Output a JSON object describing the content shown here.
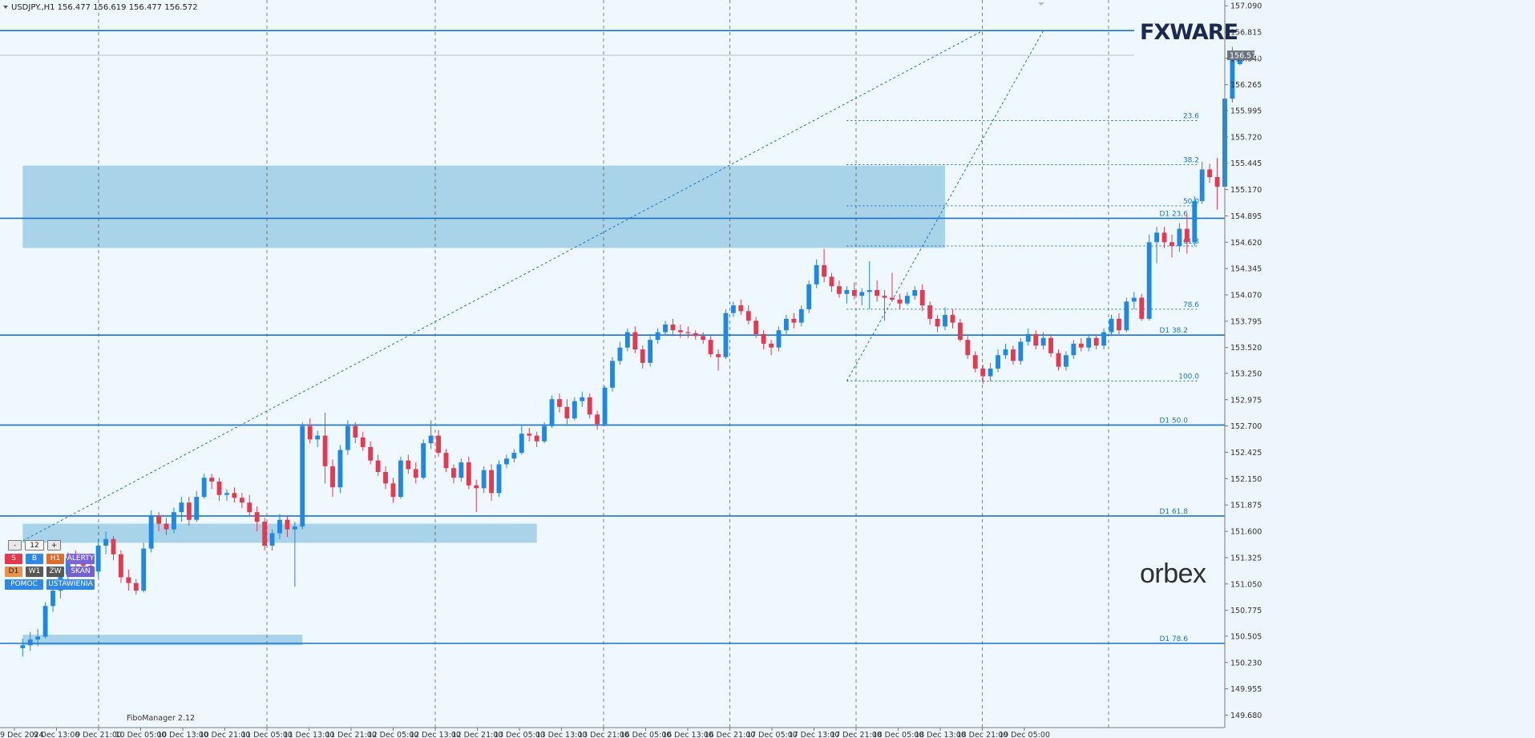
{
  "chart_data": {
    "type": "candlestick",
    "title": "USDJPY.,H1  156.477 156.619 156.477 156.572",
    "current_price": "156.572",
    "ylim": [
      149.55,
      157.15
    ],
    "y_ticks": [
      "157.090",
      "156.815",
      "156.540",
      "156.265",
      "155.995",
      "155.720",
      "155.445",
      "155.170",
      "154.895",
      "154.620",
      "154.345",
      "154.070",
      "153.795",
      "153.520",
      "153.250",
      "152.975",
      "152.700",
      "152.425",
      "152.150",
      "151.875",
      "151.600",
      "151.325",
      "151.050",
      "150.775",
      "150.505",
      "150.230",
      "149.955",
      "149.680"
    ],
    "x_ticks": [
      "9 Dec 2024",
      "9 Dec 13:00",
      "9 Dec 21:00",
      "10 Dec 05:00",
      "10 Dec 13:00",
      "10 Dec 21:00",
      "11 Dec 05:00",
      "11 Dec 13:00",
      "11 Dec 21:00",
      "12 Dec 05:00",
      "12 Dec 13:00",
      "12 Dec 21:00",
      "13 Dec 05:00",
      "13 Dec 13:00",
      "13 Dec 21:00",
      "16 Dec 05:00",
      "16 Dec 13:00",
      "16 Dec 21:00",
      "17 Dec 05:00",
      "17 Dec 13:00",
      "17 Dec 21:00",
      "18 Dec 05:00",
      "18 Dec 13:00",
      "18 Dec 21:00",
      "19 Dec 05:00"
    ],
    "grid_x_at_ticks": [
      "9 Dec 21:00",
      "11 Dec 05:00",
      "12 Dec 13:00",
      "13 Dec 21:00",
      "16 Dec 21:00",
      "17 Dec 21:00",
      "18 Dec 21:00"
    ],
    "horizontal_levels": [
      {
        "price": 156.83,
        "label": ""
      },
      {
        "price": 154.87,
        "label": "D1 23.6"
      },
      {
        "price": 153.65,
        "label": "D1 38.2"
      },
      {
        "price": 152.71,
        "label": "D1 50.0"
      },
      {
        "price": 151.76,
        "label": "D1 61.8"
      },
      {
        "price": 150.43,
        "label": "D1 78.6"
      }
    ],
    "fib_levels": [
      {
        "label": "23.6",
        "price": 155.89
      },
      {
        "label": "38.2",
        "price": 155.43
      },
      {
        "label": "50.0",
        "price": 155.0
      },
      {
        "label": "61.8",
        "price": 154.58
      },
      {
        "label": "78.6",
        "price": 153.92
      },
      {
        "label": "100.0",
        "price": 153.17
      }
    ],
    "zones": [
      {
        "name": "zone-1",
        "x_from": 0,
        "x_to": 122,
        "price_top": 155.42,
        "price_bottom": 154.56
      },
      {
        "name": "zone-2",
        "x_from": 0,
        "x_to": 68,
        "price_top": 151.68,
        "price_bottom": 151.48
      },
      {
        "name": "zone-3",
        "x_from": 0,
        "x_to": 37,
        "price_top": 150.52,
        "price_bottom": 150.41
      }
    ],
    "diagonals": [
      {
        "from_index": 0,
        "from_price": 151.5,
        "to_index": 127,
        "to_price": 156.83
      },
      {
        "from_index": 109,
        "from_price": 153.17,
        "to_index": 135,
        "to_price": 156.83
      }
    ],
    "x_start_index": -3,
    "x_end_index": 159,
    "candles": [
      [
        150.38,
        150.48,
        150.29,
        150.41
      ],
      [
        150.41,
        150.55,
        150.35,
        150.47
      ],
      [
        150.47,
        150.58,
        150.4,
        150.5
      ],
      [
        150.5,
        150.86,
        150.48,
        150.82
      ],
      [
        150.82,
        151.0,
        150.76,
        150.98
      ],
      [
        150.98,
        151.2,
        150.9,
        151.15
      ],
      [
        151.15,
        151.38,
        151.08,
        151.32
      ],
      [
        151.32,
        151.4,
        151.22,
        151.28
      ],
      [
        151.28,
        151.35,
        151.16,
        151.24
      ],
      [
        151.24,
        151.32,
        151.14,
        151.18
      ],
      [
        151.18,
        151.52,
        151.12,
        151.45
      ],
      [
        151.45,
        151.6,
        151.36,
        151.52
      ],
      [
        151.52,
        151.55,
        151.3,
        151.36
      ],
      [
        151.36,
        151.4,
        151.06,
        151.12
      ],
      [
        151.12,
        151.2,
        150.98,
        151.06
      ],
      [
        151.06,
        151.1,
        150.94,
        150.98
      ],
      [
        150.98,
        151.48,
        150.96,
        151.42
      ],
      [
        151.42,
        151.82,
        151.38,
        151.76
      ],
      [
        151.76,
        151.8,
        151.6,
        151.68
      ],
      [
        151.68,
        151.74,
        151.56,
        151.62
      ],
      [
        151.62,
        151.85,
        151.58,
        151.8
      ],
      [
        151.8,
        151.96,
        151.7,
        151.9
      ],
      [
        151.9,
        151.96,
        151.66,
        151.72
      ],
      [
        151.72,
        152.02,
        151.7,
        151.96
      ],
      [
        151.96,
        152.2,
        151.94,
        152.16
      ],
      [
        152.16,
        152.2,
        152.04,
        152.12
      ],
      [
        152.12,
        152.16,
        151.92,
        151.98
      ],
      [
        151.98,
        152.04,
        151.92,
        152.0
      ],
      [
        152.0,
        152.06,
        151.9,
        151.95
      ],
      [
        151.95,
        152.0,
        151.84,
        151.9
      ],
      [
        151.9,
        151.98,
        151.76,
        151.8
      ],
      [
        151.8,
        151.86,
        151.6,
        151.7
      ],
      [
        151.7,
        151.74,
        151.4,
        151.45
      ],
      [
        151.45,
        151.62,
        151.4,
        151.58
      ],
      [
        151.58,
        151.78,
        151.52,
        151.72
      ],
      [
        151.72,
        151.76,
        151.54,
        151.62
      ],
      [
        151.62,
        151.7,
        151.02,
        151.65
      ],
      [
        151.65,
        152.74,
        151.62,
        152.7
      ],
      [
        152.7,
        152.78,
        152.52,
        152.56
      ],
      [
        152.56,
        152.65,
        152.48,
        152.6
      ],
      [
        152.6,
        152.84,
        152.1,
        152.28
      ],
      [
        152.28,
        152.35,
        151.96,
        152.06
      ],
      [
        152.06,
        152.5,
        152.0,
        152.45
      ],
      [
        152.45,
        152.76,
        152.4,
        152.7
      ],
      [
        152.7,
        152.74,
        152.52,
        152.58
      ],
      [
        152.58,
        152.64,
        152.44,
        152.48
      ],
      [
        152.48,
        152.54,
        152.3,
        152.34
      ],
      [
        152.34,
        152.4,
        152.18,
        152.22
      ],
      [
        152.22,
        152.28,
        152.04,
        152.1
      ],
      [
        152.1,
        152.16,
        151.9,
        151.96
      ],
      [
        151.96,
        152.38,
        151.94,
        152.34
      ],
      [
        152.34,
        152.4,
        152.2,
        152.25
      ],
      [
        152.25,
        152.32,
        152.1,
        152.16
      ],
      [
        152.16,
        152.56,
        152.14,
        152.52
      ],
      [
        152.52,
        152.76,
        152.46,
        152.6
      ],
      [
        152.6,
        152.66,
        152.38,
        152.42
      ],
      [
        152.42,
        152.46,
        152.22,
        152.26
      ],
      [
        152.26,
        152.3,
        152.1,
        152.16
      ],
      [
        152.16,
        152.36,
        152.12,
        152.32
      ],
      [
        152.32,
        152.38,
        152.04,
        152.08
      ],
      [
        152.08,
        152.14,
        151.8,
        152.05
      ],
      [
        152.05,
        152.28,
        152.0,
        152.24
      ],
      [
        152.24,
        152.3,
        151.92,
        152.0
      ],
      [
        152.0,
        152.34,
        151.96,
        152.3
      ],
      [
        152.3,
        152.4,
        152.26,
        152.36
      ],
      [
        152.36,
        152.46,
        152.32,
        152.42
      ],
      [
        152.42,
        152.7,
        152.4,
        152.62
      ],
      [
        152.62,
        152.68,
        152.54,
        152.6
      ],
      [
        152.6,
        152.64,
        152.48,
        152.54
      ],
      [
        152.54,
        152.74,
        152.52,
        152.7
      ],
      [
        152.7,
        153.02,
        152.68,
        152.98
      ],
      [
        152.98,
        153.04,
        152.84,
        152.9
      ],
      [
        152.9,
        152.98,
        152.72,
        152.78
      ],
      [
        152.78,
        153.0,
        152.76,
        152.96
      ],
      [
        152.96,
        153.06,
        152.9,
        153.0
      ],
      [
        153.0,
        153.04,
        152.78,
        152.82
      ],
      [
        152.82,
        152.86,
        152.66,
        152.72
      ],
      [
        152.72,
        153.12,
        152.7,
        153.1
      ],
      [
        153.1,
        153.42,
        153.06,
        153.38
      ],
      [
        153.38,
        153.58,
        153.34,
        153.52
      ],
      [
        153.52,
        153.72,
        153.48,
        153.68
      ],
      [
        153.68,
        153.74,
        153.46,
        153.5
      ],
      [
        153.5,
        153.54,
        153.3,
        153.36
      ],
      [
        153.36,
        153.64,
        153.32,
        153.6
      ],
      [
        153.6,
        153.72,
        153.56,
        153.68
      ],
      [
        153.68,
        153.8,
        153.64,
        153.76
      ],
      [
        153.76,
        153.82,
        153.64,
        153.7
      ],
      [
        153.7,
        153.76,
        153.62,
        153.68
      ],
      [
        153.68,
        153.74,
        153.62,
        153.67
      ],
      [
        153.67,
        153.7,
        153.6,
        153.64
      ],
      [
        153.64,
        153.68,
        153.56,
        153.6
      ],
      [
        153.6,
        153.64,
        153.42,
        153.45
      ],
      [
        153.45,
        153.5,
        153.28,
        153.42
      ],
      [
        153.42,
        153.92,
        153.4,
        153.88
      ],
      [
        153.88,
        154.0,
        153.84,
        153.96
      ],
      [
        153.96,
        154.02,
        153.86,
        153.9
      ],
      [
        153.9,
        153.96,
        153.76,
        153.8
      ],
      [
        153.8,
        153.84,
        153.62,
        153.66
      ],
      [
        153.66,
        153.7,
        153.5,
        153.56
      ],
      [
        153.56,
        153.6,
        153.44,
        153.52
      ],
      [
        153.52,
        153.74,
        153.48,
        153.7
      ],
      [
        153.7,
        153.86,
        153.66,
        153.82
      ],
      [
        153.82,
        153.88,
        153.72,
        153.78
      ],
      [
        153.78,
        153.96,
        153.74,
        153.92
      ],
      [
        153.92,
        154.22,
        153.88,
        154.18
      ],
      [
        154.18,
        154.44,
        154.14,
        154.38
      ],
      [
        154.38,
        154.55,
        154.2,
        154.26
      ],
      [
        154.26,
        154.3,
        154.1,
        154.16
      ],
      [
        154.16,
        154.22,
        154.04,
        154.08
      ],
      [
        154.08,
        154.16,
        153.98,
        154.12
      ],
      [
        154.12,
        154.2,
        154.02,
        154.06
      ],
      [
        154.06,
        154.14,
        153.96,
        154.1
      ],
      [
        154.1,
        154.42,
        153.92,
        154.12
      ],
      [
        154.12,
        154.22,
        154.0,
        154.06
      ],
      [
        154.06,
        154.12,
        153.8,
        154.04
      ],
      [
        154.04,
        154.3,
        154.0,
        154.02
      ],
      [
        154.02,
        154.08,
        153.92,
        153.98
      ],
      [
        153.98,
        154.1,
        153.96,
        154.06
      ],
      [
        154.06,
        154.16,
        154.02,
        154.12
      ],
      [
        154.12,
        154.18,
        153.9,
        153.96
      ],
      [
        153.96,
        154.0,
        153.76,
        153.82
      ],
      [
        153.82,
        153.86,
        153.68,
        153.74
      ],
      [
        153.74,
        153.94,
        153.7,
        153.86
      ],
      [
        153.86,
        153.92,
        153.72,
        153.78
      ],
      [
        153.78,
        153.82,
        153.58,
        153.6
      ],
      [
        153.6,
        153.64,
        153.4,
        153.44
      ],
      [
        153.44,
        153.48,
        153.26,
        153.3
      ],
      [
        153.3,
        153.34,
        153.14,
        153.22
      ],
      [
        153.22,
        153.36,
        153.17,
        153.3
      ],
      [
        153.3,
        153.5,
        153.26,
        153.44
      ],
      [
        153.44,
        153.56,
        153.4,
        153.5
      ],
      [
        153.5,
        153.54,
        153.34,
        153.38
      ],
      [
        153.38,
        153.62,
        153.34,
        153.58
      ],
      [
        153.58,
        153.72,
        153.54,
        153.66
      ],
      [
        153.66,
        153.7,
        153.5,
        153.54
      ],
      [
        153.54,
        153.68,
        153.5,
        153.62
      ],
      [
        153.62,
        153.66,
        153.42,
        153.46
      ],
      [
        153.46,
        153.5,
        153.28,
        153.32
      ],
      [
        153.32,
        153.48,
        153.28,
        153.44
      ],
      [
        153.44,
        153.6,
        153.4,
        153.56
      ],
      [
        153.56,
        153.62,
        153.48,
        153.52
      ],
      [
        153.52,
        153.66,
        153.48,
        153.62
      ],
      [
        153.62,
        153.66,
        153.5,
        153.54
      ],
      [
        153.54,
        153.72,
        153.5,
        153.68
      ],
      [
        153.68,
        153.86,
        153.64,
        153.82
      ],
      [
        153.82,
        153.88,
        153.66,
        153.7
      ],
      [
        153.7,
        154.04,
        153.68,
        154.0
      ],
      [
        154.0,
        154.1,
        153.92,
        154.04
      ],
      [
        154.04,
        154.08,
        153.8,
        153.82
      ],
      [
        153.82,
        154.7,
        153.8,
        154.62
      ],
      [
        154.62,
        154.78,
        154.4,
        154.72
      ],
      [
        154.72,
        154.78,
        154.56,
        154.62
      ],
      [
        154.62,
        154.7,
        154.46,
        154.58
      ],
      [
        154.58,
        154.82,
        154.52,
        154.76
      ],
      [
        154.76,
        154.92,
        154.5,
        154.62
      ],
      [
        154.62,
        155.1,
        154.58,
        155.05
      ],
      [
        155.05,
        155.46,
        155.02,
        155.38
      ],
      [
        155.38,
        155.44,
        155.24,
        155.3
      ],
      [
        155.3,
        155.5,
        154.96,
        155.2
      ],
      [
        155.2,
        156.16,
        155.16,
        156.12
      ],
      [
        156.12,
        156.66,
        156.08,
        156.6
      ],
      [
        156.48,
        156.62,
        156.47,
        156.57
      ]
    ]
  },
  "brand": {
    "fxware": "FXWARE",
    "orbex": "orbex"
  },
  "fibo_manager_label": "FiboManager 2.12",
  "controls": {
    "minus": "-",
    "value": "12",
    "plus": "+",
    "buttons_row1": [
      "S",
      "B",
      "H1",
      "ALERTY"
    ],
    "buttons_row2": [
      "D1",
      "W1",
      "ZW",
      "SKAN"
    ],
    "buttons_row3": [
      "POMOC",
      "USTAWIENIA"
    ]
  },
  "colors": {
    "bull": "#1e88e5",
    "bear": "#e53950",
    "levels": "#1a73c8",
    "zone": "#9ccce4"
  }
}
